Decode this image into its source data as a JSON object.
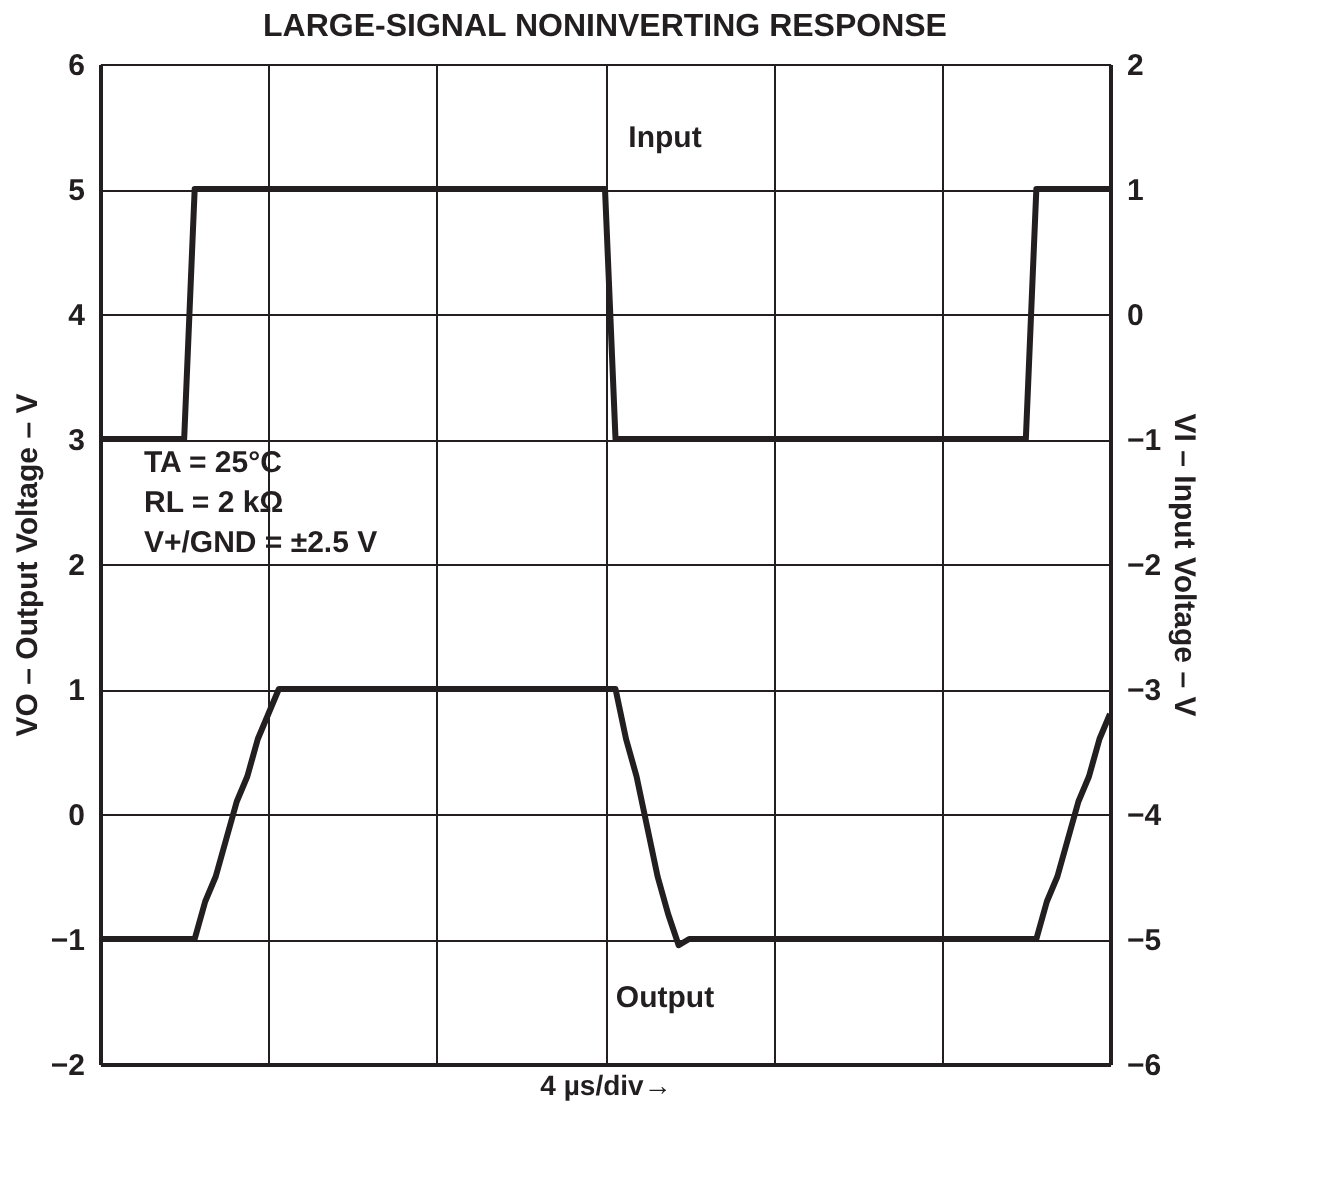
{
  "chart_data": {
    "type": "line",
    "title": "LARGE-SIGNAL NONINVERTING RESPONSE",
    "xlabel": "4 µs/div→",
    "ylabel": "VO – Output Voltage – V",
    "y2label": "VI – Input Voltage – V",
    "categories": [
      null,
      null,
      null,
      null,
      null,
      null,
      null,
      null,
      null,
      null,
      null,
      null,
      null,
      null,
      null,
      null,
      null,
      null,
      null,
      null,
      null,
      null,
      null,
      null,
      null,
      null,
      null,
      null,
      null,
      null,
      null,
      null,
      null,
      null,
      null,
      null,
      null,
      null,
      null,
      null,
      null,
      null,
      null,
      null,
      null,
      null,
      null,
      null,
      null,
      null,
      null,
      null,
      null,
      null,
      null,
      null,
      null,
      null,
      null,
      null,
      null,
      null,
      null,
      null,
      null,
      null,
      null,
      null,
      null,
      null,
      null,
      null,
      null,
      null,
      null,
      null,
      null,
      null,
      null,
      null,
      null,
      null,
      null,
      null,
      null,
      null,
      null,
      null,
      null,
      null,
      null,
      null,
      null,
      null,
      null,
      null,
      null
    ],
    "ylim": [
      -2,
      6
    ],
    "yticks": [
      -2,
      -1,
      0,
      1,
      2,
      3,
      4,
      5,
      6
    ],
    "y2lim": [
      -6,
      2
    ],
    "y2ticks": [
      -6,
      -5,
      -4,
      -3,
      -2,
      -1,
      0,
      1,
      2
    ],
    "tick_labels": "y",
    "grid": true,
    "marker": "none",
    "line_style": "solid",
    "annotations": [
      "TA = 25°C",
      "RL = 2 kΩ",
      "V+/GND = ±2.5 V"
    ],
    "series": [
      {
        "name": "Input",
        "color": "#231f20",
        "axis": "y2",
        "values": [
          -1,
          -1,
          -1,
          -1,
          -1,
          -1,
          -1,
          -1,
          -1,
          1,
          1,
          1,
          1,
          1,
          1,
          1,
          1,
          1,
          1,
          1,
          1,
          1,
          1,
          1,
          1,
          1,
          1,
          1,
          1,
          1,
          1,
          1,
          1,
          1,
          1,
          1,
          1,
          1,
          1,
          1,
          1,
          1,
          1,
          1,
          1,
          1,
          1,
          1,
          1,
          -1,
          -1,
          -1,
          -1,
          -1,
          -1,
          -1,
          -1,
          -1,
          -1,
          -1,
          -1,
          -1,
          -1,
          -1,
          -1,
          -1,
          -1,
          -1,
          -1,
          -1,
          -1,
          -1,
          -1,
          -1,
          -1,
          -1,
          -1,
          -1,
          -1,
          -1,
          -1,
          -1,
          -1,
          -1,
          -1,
          -1,
          -1,
          -1,
          -1,
          1,
          1,
          1,
          1,
          1,
          1,
          1,
          1
        ]
      },
      {
        "name": "Output",
        "color": "#231f20",
        "axis": "y",
        "values": [
          -1,
          -1,
          -1,
          -1,
          -1,
          -1,
          -1,
          -1,
          -1,
          -1,
          -0.7,
          -0.5,
          -0.2,
          0.1,
          0.3,
          0.6,
          0.8,
          1,
          1,
          1,
          1,
          1,
          1,
          1,
          1,
          1,
          1,
          1,
          1,
          1,
          1,
          1,
          1,
          1,
          1,
          1,
          1,
          1,
          1,
          1,
          1,
          1,
          1,
          1,
          1,
          1,
          1,
          1,
          1,
          1,
          0.6,
          0.3,
          -0.1,
          -0.5,
          -0.8,
          -1.05,
          -1,
          -1,
          -1,
          -1,
          -1,
          -1,
          -1,
          -1,
          -1,
          -1,
          -1,
          -1,
          -1,
          -1,
          -1,
          -1,
          -1,
          -1,
          -1,
          -1,
          -1,
          -1,
          -1,
          -1,
          -1,
          -1,
          -1,
          -1,
          -1,
          -1,
          -1,
          -1,
          -1,
          -1,
          -0.7,
          -0.5,
          -0.2,
          0.1,
          0.3,
          0.6,
          0.8
        ]
      }
    ]
  }
}
